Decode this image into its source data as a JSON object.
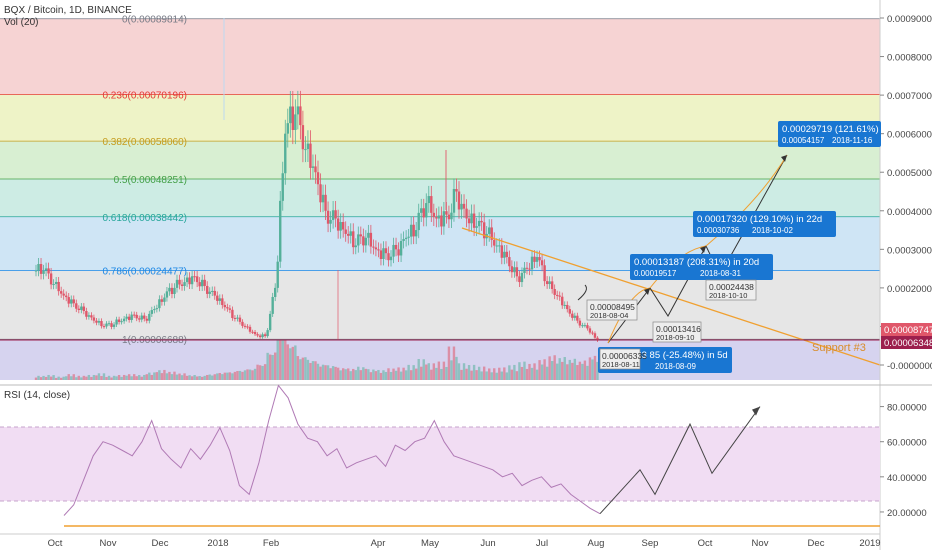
{
  "header": {
    "symbol": "BQX / Bitcoin, 1D, BINANCE",
    "volume": "Vol (20)",
    "rsi": "RSI (14, close)"
  },
  "colors": {
    "up": "#55b09a",
    "down": "#e0576a",
    "trend": "#f0a030",
    "rsi": "#9a4a9f",
    "blue": "#1976d2"
  },
  "chart_data": [
    {
      "type": "line",
      "name": "price",
      "x_labels": [
        "Oct",
        "Nov",
        "Dec",
        "2018",
        "Feb",
        "Apr",
        "May",
        "Jun",
        "Jul",
        "Aug",
        "Sep",
        "Oct",
        "Nov",
        "Dec",
        "2019"
      ],
      "y_ticks": [
        "0.00090000",
        "0.00080000",
        "0.00070000",
        "0.00060000",
        "0.00050000",
        "0.00040000",
        "0.00030000",
        "0.00020000",
        "0.00010000",
        "-0.00000000"
      ],
      "price_tags": [
        "0.00008747",
        "0.00006348"
      ],
      "fib_levels": [
        {
          "label": "0(0.00089814)",
          "value": 0.00089814,
          "color": "#787b86"
        },
        {
          "label": "0.236(0.00070196)",
          "value": 0.00070196,
          "color": "#e53935"
        },
        {
          "label": "0.382(0.00058060)",
          "value": 0.0005806,
          "color": "#c59d1f"
        },
        {
          "label": "0.5(0.00048251)",
          "value": 0.00048251,
          "color": "#43a047"
        },
        {
          "label": "0.618(0.00038442)",
          "value": 0.00038442,
          "color": "#26a69a"
        },
        {
          "label": "0.786(0.00024477)",
          "value": 0.00024477,
          "color": "#1e88e5"
        },
        {
          "label": "1(0.00006688)",
          "value": 6.688e-05,
          "color": "#787b86"
        }
      ],
      "support_label": "Support #3",
      "series": [
        {
          "name": "close",
          "values": [
            0.000245,
            0.00021,
            0.00018,
            0.00016,
            0.00014,
            0.000115,
            0.0001,
            0.000105,
            0.00012,
            0.00013,
            0.00012,
            0.000145,
            0.000175,
            0.0002,
            0.000215,
            0.00023,
            0.000205,
            0.00018,
            0.00015,
            0.00012,
            0.0001,
            8e-05,
            7.5e-05,
            0.0002,
            0.0006,
            0.00065,
            0.00056,
            0.0005,
            0.0004,
            0.00038,
            0.00034,
            0.00031,
            0.00033,
            0.0003,
            0.00029,
            0.0003,
            0.00033,
            0.00035,
            0.00042,
            0.00038,
            0.00039,
            0.00045,
            0.00038,
            0.00036,
            0.00034,
            0.00031,
            0.00028,
            0.00023,
            0.00025,
            0.00028,
            0.00021,
            0.00018,
            0.000145,
            0.000115,
            9.5e-05,
            6.34e-05
          ]
        },
        {
          "name": "volume",
          "values": [
            5,
            6,
            4,
            7,
            5,
            6,
            8,
            5,
            6,
            7,
            6,
            9,
            12,
            10,
            8,
            6,
            5,
            7,
            9,
            10,
            12,
            14,
            20,
            35,
            60,
            45,
            30,
            25,
            20,
            18,
            15,
            14,
            16,
            13,
            12,
            14,
            15,
            18,
            25,
            20,
            22,
            40,
            20,
            18,
            16,
            14,
            15,
            18,
            22,
            20,
            25,
            30,
            28,
            26,
            24,
            30
          ]
        }
      ]
    },
    {
      "type": "line",
      "name": "RSI (14, close)",
      "y_ticks": [
        "80.00000",
        "60.00000",
        "40.00000",
        "20.00000"
      ],
      "ylim": [
        12,
        94
      ],
      "band": [
        30,
        70
      ],
      "series": [
        {
          "name": "rsi",
          "values": [
            18,
            24,
            38,
            52,
            60,
            58,
            55,
            52,
            60,
            72,
            56,
            50,
            45,
            56,
            50,
            58,
            68,
            55,
            35,
            30,
            48,
            72,
            92,
            85,
            70,
            62,
            60,
            52,
            56,
            45,
            48,
            50,
            52,
            46,
            58,
            55,
            60,
            62,
            72,
            60,
            52,
            50,
            48,
            46,
            44,
            40,
            42,
            35,
            38,
            40,
            34,
            36,
            30,
            26,
            22,
            19
          ]
        },
        {
          "name": "projection",
          "values": [
            19,
            44,
            30,
            70,
            42,
            80
          ]
        }
      ]
    }
  ],
  "annotations": {
    "target1": {
      "main": "0.00013187 (208.31%) in 20d",
      "sub1": "0.00019517",
      "sub2": "2018-08-31"
    },
    "target2": {
      "main": "0.00017320 (129.10%) in 22d",
      "sub1": "0.00030736",
      "sub2": "2018-10-02"
    },
    "target3": {
      "main": "0.00029719 (121.61%)",
      "sub1": "0.00054157",
      "sub2": "2018-11-16"
    },
    "drop": {
      "main": "0.0000633 85 (-25.48%) in 5d",
      "date": "2018-08-09"
    },
    "g1": {
      "price": "0.00008495",
      "date": "2018-08-04"
    },
    "g2": {
      "price": "0.00013416",
      "date": "2018-09-10"
    },
    "g3": {
      "price": "0.00024438",
      "date": "2018-10-10"
    },
    "g4": {
      "price": "0.00006335",
      "date": "2018-08-11"
    }
  }
}
